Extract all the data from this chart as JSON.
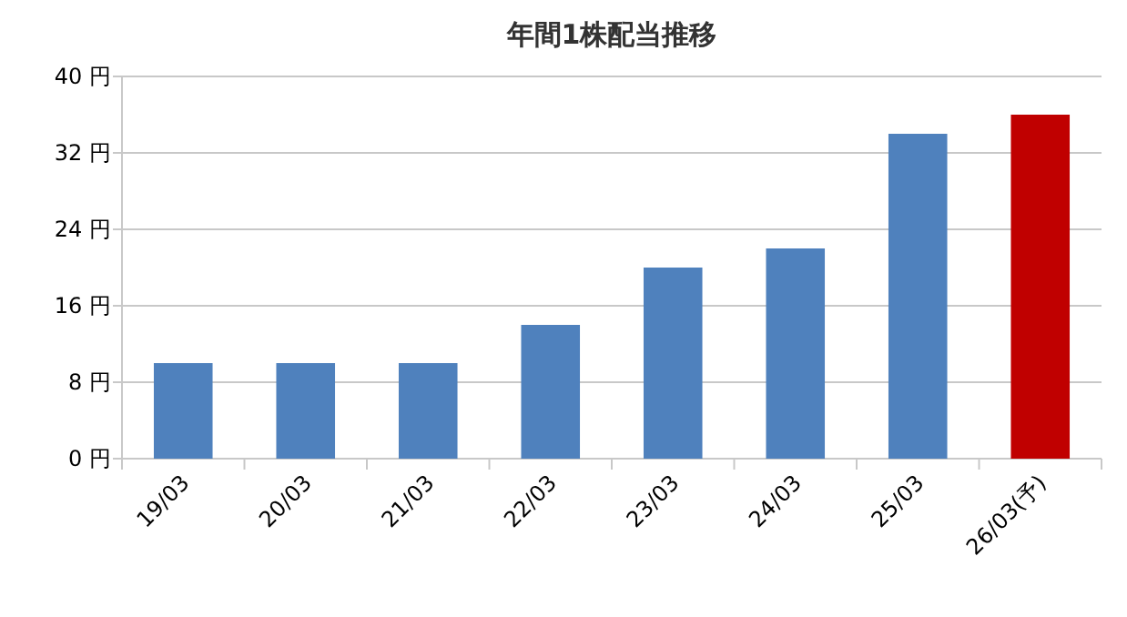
{
  "chart_data": {
    "type": "bar",
    "title": "年間1株配当推移",
    "categories": [
      "19/03",
      "20/03",
      "21/03",
      "22/03",
      "23/03",
      "24/03",
      "25/03",
      "26/03(予)"
    ],
    "values": [
      10,
      10,
      10,
      14,
      20,
      22,
      34,
      36
    ],
    "colors": [
      "#4f81bd",
      "#4f81bd",
      "#4f81bd",
      "#4f81bd",
      "#4f81bd",
      "#4f81bd",
      "#4f81bd",
      "#c00000"
    ],
    "ylim": [
      0,
      40
    ],
    "yticks": [
      {
        "value": 0,
        "label": "0 円"
      },
      {
        "value": 8,
        "label": "8 円"
      },
      {
        "value": 16,
        "label": "16 円"
      },
      {
        "value": 24,
        "label": "24 円"
      },
      {
        "value": 32,
        "label": "32 円"
      },
      {
        "value": 40,
        "label": "40 円"
      }
    ],
    "grid": "y"
  }
}
